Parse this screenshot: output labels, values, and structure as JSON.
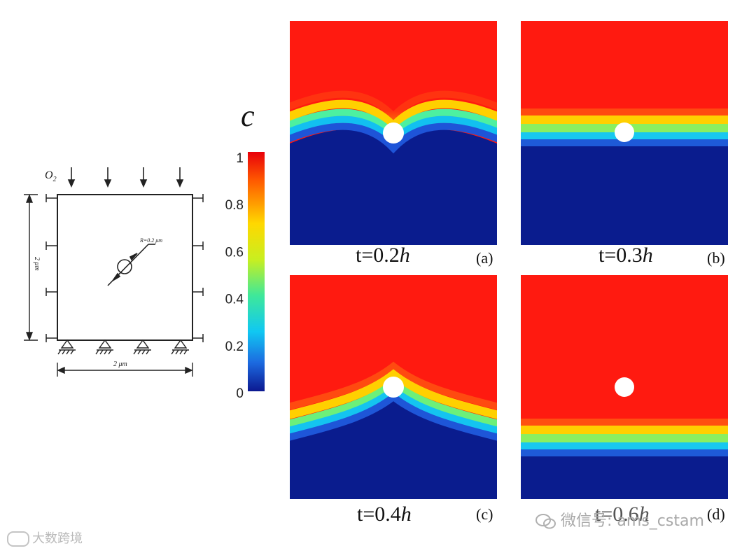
{
  "schematic": {
    "gas_label": "O",
    "gas_subscript": "2",
    "radius_label": "R=0.2 μm",
    "width_label": "2 μm",
    "height_label": "2 μm"
  },
  "colorbar": {
    "symbol": "c",
    "ticks": [
      "1",
      "0.8",
      "0.6",
      "0.4",
      "0.2",
      "0"
    ]
  },
  "panels": [
    {
      "time_prefix": "t=0.2",
      "time_unit": "h",
      "letter": "(a)"
    },
    {
      "time_prefix": "t=0.3",
      "time_unit": "h",
      "letter": "(b)"
    },
    {
      "time_prefix": "t=0.4",
      "time_unit": "h",
      "letter": "(c)"
    },
    {
      "time_prefix": "t=0.6",
      "time_unit": "h",
      "letter": "(d)"
    }
  ],
  "watermarks": {
    "left": "大数跨境",
    "right": "微信号: ams_cstam"
  },
  "colors": {
    "red": "#ff1a10",
    "blue": "#0a1c8e"
  }
}
